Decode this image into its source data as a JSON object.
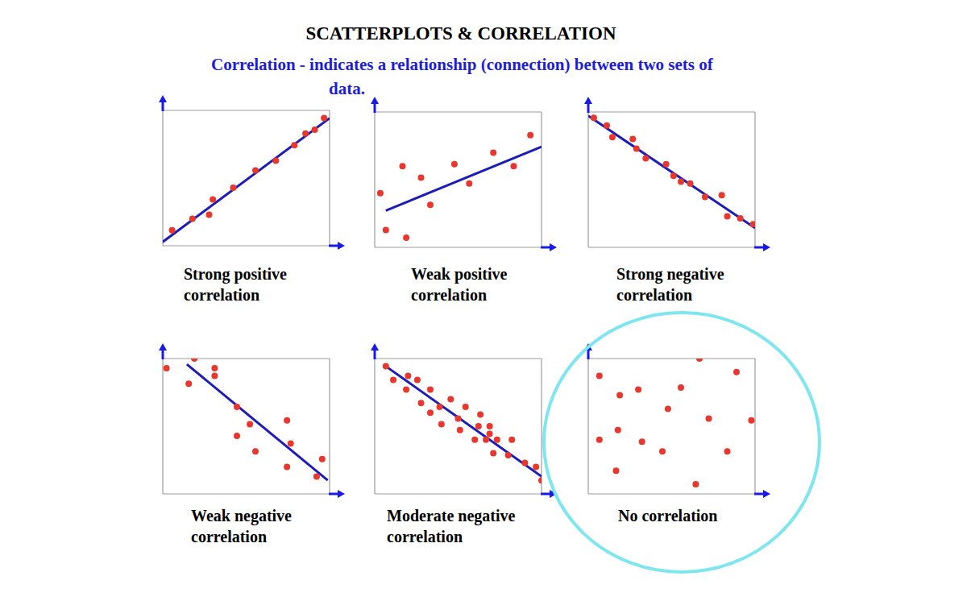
{
  "title": "SCATTERPLOTS & CORRELATION",
  "subtitle": "Correlation - indicates a relationship (connection) between two sets of data.",
  "chart_data": [
    {
      "type": "scatter",
      "title": "Strong positive correlation",
      "x": [
        0.5,
        1.6,
        2.5,
        2.7,
        3.8,
        5.0,
        6.1,
        7.1,
        7.7,
        8.2,
        8.7
      ],
      "values": [
        0.8,
        1.4,
        1.6,
        2.4,
        3.0,
        3.9,
        4.4,
        5.2,
        5.8,
        6.0,
        6.6
      ],
      "trend_line": {
        "x": [
          0,
          9
        ],
        "values": [
          0.2,
          6.6
        ]
      },
      "color": "#e8372c",
      "xlim": [
        0,
        9
      ],
      "ylim": [
        0,
        7
      ],
      "xticks": [
        0,
        1,
        2,
        3,
        4,
        5,
        6,
        7,
        8,
        9
      ],
      "yticks": [
        0,
        1,
        2,
        3,
        4,
        5,
        6,
        7
      ],
      "grid": true,
      "tick_labels": false
    },
    {
      "type": "scatter",
      "title": "Weak positive correlation",
      "x": [
        0.3,
        0.6,
        1.5,
        1.7,
        2.5,
        3.0,
        4.3,
        5.1,
        6.4,
        7.5,
        8.4
      ],
      "values": [
        2.8,
        0.9,
        4.2,
        0.5,
        3.6,
        2.2,
        4.3,
        3.3,
        4.9,
        4.2,
        5.8
      ],
      "trend_line": {
        "x": [
          0.6,
          9
        ],
        "values": [
          1.9,
          5.2
        ]
      },
      "color": "#e8372c",
      "xlim": [
        0,
        9
      ],
      "ylim": [
        0,
        7
      ],
      "xticks": [
        0,
        1,
        2,
        3,
        4,
        5,
        6,
        7,
        8,
        9
      ],
      "yticks": [
        0,
        1,
        2,
        3,
        4,
        5,
        6,
        7
      ],
      "grid": true,
      "tick_labels": false
    },
    {
      "type": "scatter",
      "title": "Strong negative correlation",
      "x": [
        0.3,
        1.0,
        1.3,
        2.4,
        2.6,
        3.1,
        4.2,
        4.6,
        5.0,
        5.5,
        6.3,
        7.2,
        7.5,
        8.2,
        8.9
      ],
      "values": [
        6.7,
        6.3,
        5.7,
        5.6,
        5.1,
        4.6,
        4.3,
        3.7,
        3.4,
        3.3,
        2.6,
        2.7,
        1.6,
        1.5,
        1.2
      ],
      "trend_line": {
        "x": [
          0,
          9
        ],
        "values": [
          6.8,
          1.0
        ]
      },
      "color": "#e8372c",
      "xlim": [
        0,
        9
      ],
      "ylim": [
        0,
        7
      ],
      "xticks": [
        0,
        1,
        2,
        3,
        4,
        5,
        6,
        7,
        8,
        9
      ],
      "yticks": [
        0,
        1,
        2,
        3,
        4,
        5,
        6,
        7
      ],
      "grid": true,
      "tick_labels": false
    },
    {
      "type": "scatter",
      "title": "Weak negative correlation",
      "x": [
        0.2,
        1.4,
        1.7,
        2.8,
        2.8,
        4.0,
        4.7,
        4.0,
        5.0,
        6.7,
        6.9,
        6.7,
        8.6,
        8.3
      ],
      "values": [
        6.5,
        5.7,
        7.0,
        6.5,
        6.1,
        4.5,
        3.6,
        3.0,
        2.2,
        3.8,
        2.6,
        1.4,
        1.8,
        0.9
      ],
      "trend_line": {
        "x": [
          1.3,
          8.9
        ],
        "values": [
          6.7,
          0.7
        ]
      },
      "color": "#e8372c",
      "xlim": [
        0,
        9
      ],
      "ylim": [
        0,
        7
      ],
      "xticks": [
        0,
        1,
        2,
        3,
        4,
        5,
        6,
        7,
        8,
        9
      ],
      "yticks": [
        0,
        1,
        2,
        3,
        4,
        5,
        6,
        7
      ],
      "grid": true,
      "tick_labels": false
    },
    {
      "type": "scatter",
      "title": "Moderate negative correlation",
      "x": [
        0.6,
        1.0,
        1.8,
        2.3,
        1.7,
        3.0,
        2.5,
        3.5,
        3.0,
        4.1,
        3.6,
        4.5,
        4.9,
        5.7,
        5.6,
        6.2,
        4.6,
        5.4,
        6.0,
        6.2,
        6.6,
        7.4,
        6.4,
        7.2,
        8.1,
        8.7,
        9.0
      ],
      "values": [
        6.6,
        5.9,
        6.1,
        5.9,
        5.4,
        5.4,
        4.7,
        4.5,
        4.2,
        4.9,
        3.6,
        3.9,
        4.5,
        4.1,
        3.5,
        3.5,
        3.3,
        2.8,
        2.8,
        3.1,
        2.8,
        2.8,
        2.1,
        2.0,
        1.6,
        1.4,
        0.7
      ],
      "trend_line": {
        "x": [
          0.6,
          9
        ],
        "values": [
          6.6,
          0.9
        ]
      },
      "color": "#e8372c",
      "xlim": [
        0,
        9
      ],
      "ylim": [
        0,
        7
      ],
      "xticks": [
        0,
        1,
        2,
        3,
        4,
        5,
        6,
        7,
        8,
        9
      ],
      "yticks": [
        0,
        1,
        2,
        3,
        4,
        5,
        6,
        7
      ],
      "grid": true,
      "tick_labels": false
    },
    {
      "type": "scatter",
      "title": "No correlation",
      "x": [
        0.6,
        1.7,
        2.7,
        1.6,
        0.6,
        1.5,
        2.9,
        4.0,
        4.3,
        5.0,
        6.0,
        6.5,
        5.8,
        7.5,
        8.0,
        8.8
      ],
      "values": [
        6.1,
        5.1,
        5.4,
        3.3,
        2.8,
        1.2,
        2.7,
        2.2,
        4.4,
        5.5,
        7.0,
        3.9,
        0.5,
        2.2,
        6.3,
        3.8
      ],
      "color": "#e8372c",
      "xlim": [
        0,
        9
      ],
      "ylim": [
        0,
        7
      ],
      "xticks": [
        0,
        1,
        2,
        3,
        4,
        5,
        6,
        7,
        8,
        9
      ],
      "yticks": [
        0,
        1,
        2,
        3,
        4,
        5,
        6,
        7
      ],
      "grid": true,
      "tick_labels": false
    }
  ]
}
